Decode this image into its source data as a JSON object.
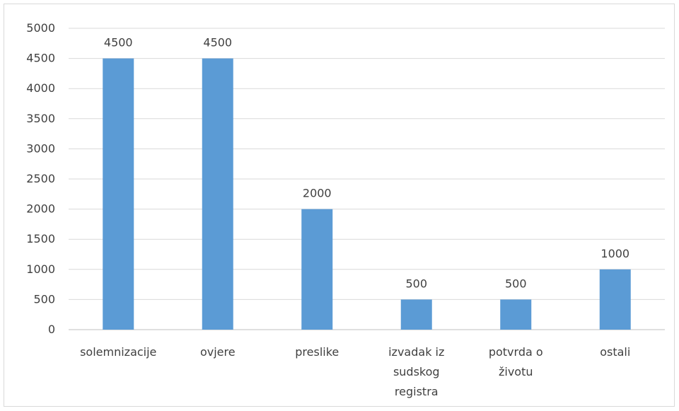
{
  "chart_data": {
    "type": "bar",
    "categories": [
      [
        "solemnizacije"
      ],
      [
        "ovjere"
      ],
      [
        "preslike"
      ],
      [
        "izvadak iz",
        "sudskog",
        "registra"
      ],
      [
        "potvrda o",
        "životu"
      ],
      [
        "ostali"
      ]
    ],
    "values": [
      4500,
      4500,
      2000,
      500,
      500,
      1000
    ],
    "ylim": [
      0,
      5000
    ],
    "yticks": [
      0,
      500,
      1000,
      1500,
      2000,
      2500,
      3000,
      3500,
      4000,
      4500,
      5000
    ],
    "grid": true,
    "legend": "none",
    "colors": {
      "bar": "#5B9BD5",
      "grid": "#d9d9d9",
      "axis": "#bfbfbf",
      "text": "#404040"
    }
  }
}
